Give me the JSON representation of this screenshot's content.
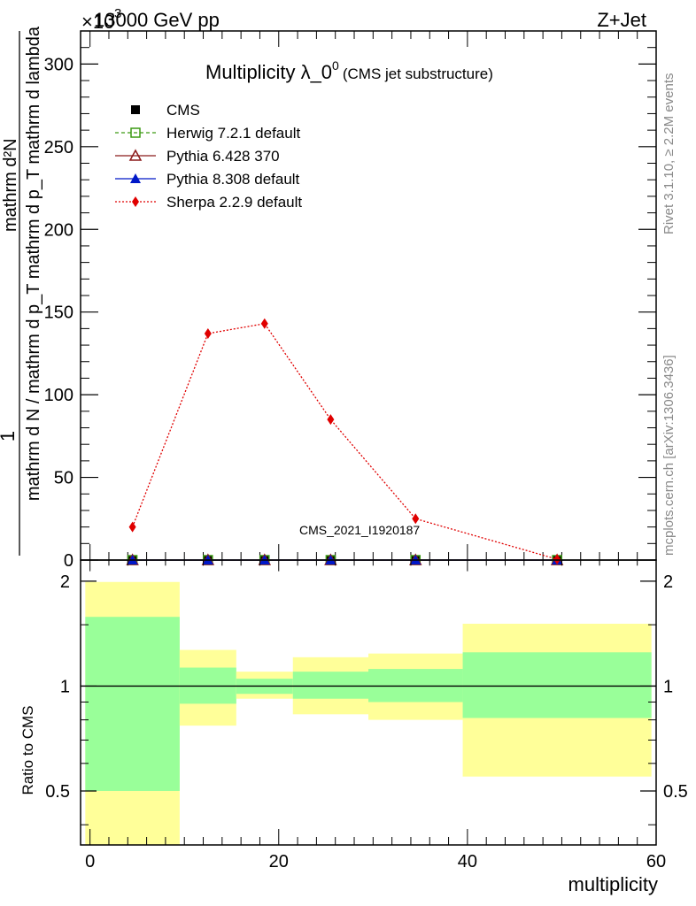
{
  "header": {
    "energy": "13000 GeV pp",
    "process": "Z+Jet",
    "exponent": "×10",
    "exponent_power": "-3"
  },
  "side_labels": {
    "rivet": "Rivet 3.1.10, ≥ 2.2M events",
    "mcplots": "mcplots.cern.ch [arXiv:1306.3436]"
  },
  "watermark": "CMS_2021_I1920187",
  "chart_data": [
    {
      "type": "line",
      "title": "Multiplicity λ_0",
      "title_sup": "0",
      "subtitle": "(CMS jet substructure)",
      "ylabel_top": "1",
      "ylabel_num": "mathrm d²N",
      "ylabel_den": "mathrm d N / mathrm d p_T mathrm d p_T mathrm d lambda",
      "xlim": [
        -1,
        60
      ],
      "ylim": [
        0,
        320
      ],
      "yticks": [
        0,
        50,
        100,
        150,
        200,
        250,
        300
      ],
      "xticks": [
        0,
        20,
        40,
        60
      ],
      "legend_position": "top-left",
      "series": [
        {
          "name": "CMS",
          "color": "#000000",
          "marker": "square-filled",
          "x": [
            4.5,
            12.5,
            18.5,
            25.5,
            34.5,
            49.5
          ],
          "y": [
            0,
            0,
            0,
            0,
            0,
            0
          ]
        },
        {
          "name": "Herwig 7.2.1 default",
          "color": "#3c9a13",
          "marker": "square-open",
          "line": "dashed",
          "x": [
            4.5,
            12.5,
            18.5,
            25.5,
            34.5,
            49.5
          ],
          "y": [
            0,
            0,
            0,
            0,
            0,
            0
          ]
        },
        {
          "name": "Pythia 6.428 370",
          "color": "#8b1a1a",
          "marker": "triangle-open",
          "line": "solid",
          "x": [
            4.5,
            12.5,
            18.5,
            25.5,
            34.5,
            49.5
          ],
          "y": [
            0,
            0,
            0,
            0,
            0,
            0
          ]
        },
        {
          "name": "Pythia 8.308 default",
          "color": "#0018c8",
          "marker": "triangle-filled",
          "line": "solid",
          "x": [
            4.5,
            12.5,
            18.5,
            25.5,
            34.5,
            49.5
          ],
          "y": [
            0,
            0,
            0,
            0,
            0,
            0
          ]
        },
        {
          "name": "Sherpa 2.2.9 default",
          "color": "#e00000",
          "marker": "diamond-filled",
          "line": "dotted",
          "x": [
            4.5,
            12.5,
            18.5,
            25.5,
            34.5,
            49.5
          ],
          "y": [
            20,
            137,
            143,
            85,
            25,
            0.5
          ]
        }
      ]
    },
    {
      "type": "area",
      "ylabel": "Ratio to CMS",
      "xlabel": "multiplicity",
      "xlim": [
        -1,
        60
      ],
      "ylim": [
        0.35,
        2.3
      ],
      "ylog": true,
      "yticks": [
        0.5,
        1,
        2
      ],
      "xticks": [
        0,
        20,
        40,
        60
      ],
      "reference_line": 1,
      "bins": [
        {
          "lo": -0.5,
          "hi": 9.5,
          "band_inner": [
            0.5,
            1.58
          ],
          "band_outer": [
            0.35,
            1.99
          ]
        },
        {
          "lo": 9.5,
          "hi": 15.5,
          "band_inner": [
            0.89,
            1.13
          ],
          "band_outer": [
            0.77,
            1.27
          ]
        },
        {
          "lo": 15.5,
          "hi": 21.5,
          "band_inner": [
            0.95,
            1.05
          ],
          "band_outer": [
            0.92,
            1.1
          ]
        },
        {
          "lo": 21.5,
          "hi": 29.5,
          "band_inner": [
            0.92,
            1.1
          ],
          "band_outer": [
            0.83,
            1.21
          ]
        },
        {
          "lo": 29.5,
          "hi": 39.5,
          "band_inner": [
            0.9,
            1.12
          ],
          "band_outer": [
            0.8,
            1.24
          ]
        },
        {
          "lo": 39.5,
          "hi": 59.5,
          "band_inner": [
            0.81,
            1.25
          ],
          "band_outer": [
            0.55,
            1.51
          ]
        }
      ],
      "colors": {
        "inner": "#99ff99",
        "outer": "#ffff99"
      }
    }
  ]
}
